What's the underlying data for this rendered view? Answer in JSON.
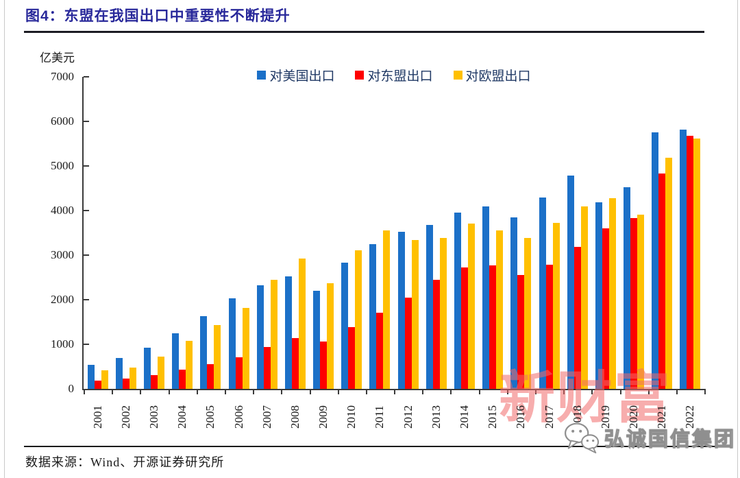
{
  "figure": {
    "title": "图4：东盟在我国出口中重要性不断提升",
    "unit_label": "亿美元",
    "source_text": "数据来源：Wind、开源证券研究所",
    "watermark_center": "新财富",
    "watermark_brand": "弘诚国信集团"
  },
  "colors": {
    "title": "#28289A",
    "legend_text": "#1F3864",
    "axis": "#3A3A3A",
    "series_us_blue": "#1B70C8",
    "series_asean_red": "#FE0000",
    "series_eu_gold": "#FFC000",
    "watermark_pink": "rgba(240,105,105,0.55)"
  },
  "icons": {
    "brand_icon": "wechat-icon"
  },
  "chart_data": {
    "type": "bar",
    "title": "图4：东盟在我国出口中重要性不断提升",
    "unit": "亿美元",
    "xlabel": "",
    "ylabel": "亿美元",
    "ylim": [
      0,
      7000
    ],
    "ytick_interval": 1000,
    "yticks": [
      0,
      1000,
      2000,
      3000,
      4000,
      5000,
      6000,
      7000
    ],
    "grid": false,
    "legend_position": "top-center",
    "categories": [
      "2001",
      "2002",
      "2003",
      "2004",
      "2005",
      "2006",
      "2007",
      "2008",
      "2009",
      "2010",
      "2011",
      "2012",
      "2013",
      "2014",
      "2015",
      "2016",
      "2017",
      "2018",
      "2019",
      "2020",
      "2021",
      "2022"
    ],
    "series": [
      {
        "key": "us",
        "name": "对美国出口",
        "color": "#1B70C8",
        "values": [
          543,
          700,
          925,
          1249,
          1629,
          2035,
          2327,
          2523,
          2208,
          2833,
          3245,
          3518,
          3684,
          3961,
          4092,
          3851,
          4298,
          4784,
          4187,
          4518,
          5761,
          5817
        ]
      },
      {
        "key": "asean",
        "name": "对东盟出口",
        "color": "#FE0000",
        "values": [
          184,
          236,
          309,
          429,
          554,
          713,
          942,
          1141,
          1063,
          1383,
          1701,
          2043,
          2441,
          2719,
          2777,
          2560,
          2791,
          3193,
          3595,
          3837,
          4837,
          5671
        ]
      },
      {
        "key": "eu",
        "name": "对欧盟出口",
        "color": "#FFC000",
        "values": [
          409,
          482,
          721,
          1072,
          1437,
          1820,
          2452,
          2929,
          2363,
          3112,
          3560,
          3339,
          3390,
          3709,
          3560,
          3393,
          3725,
          4086,
          4284,
          3909,
          5182,
          5619
        ]
      }
    ],
    "source": "数据来源：Wind、开源证券研究所"
  }
}
